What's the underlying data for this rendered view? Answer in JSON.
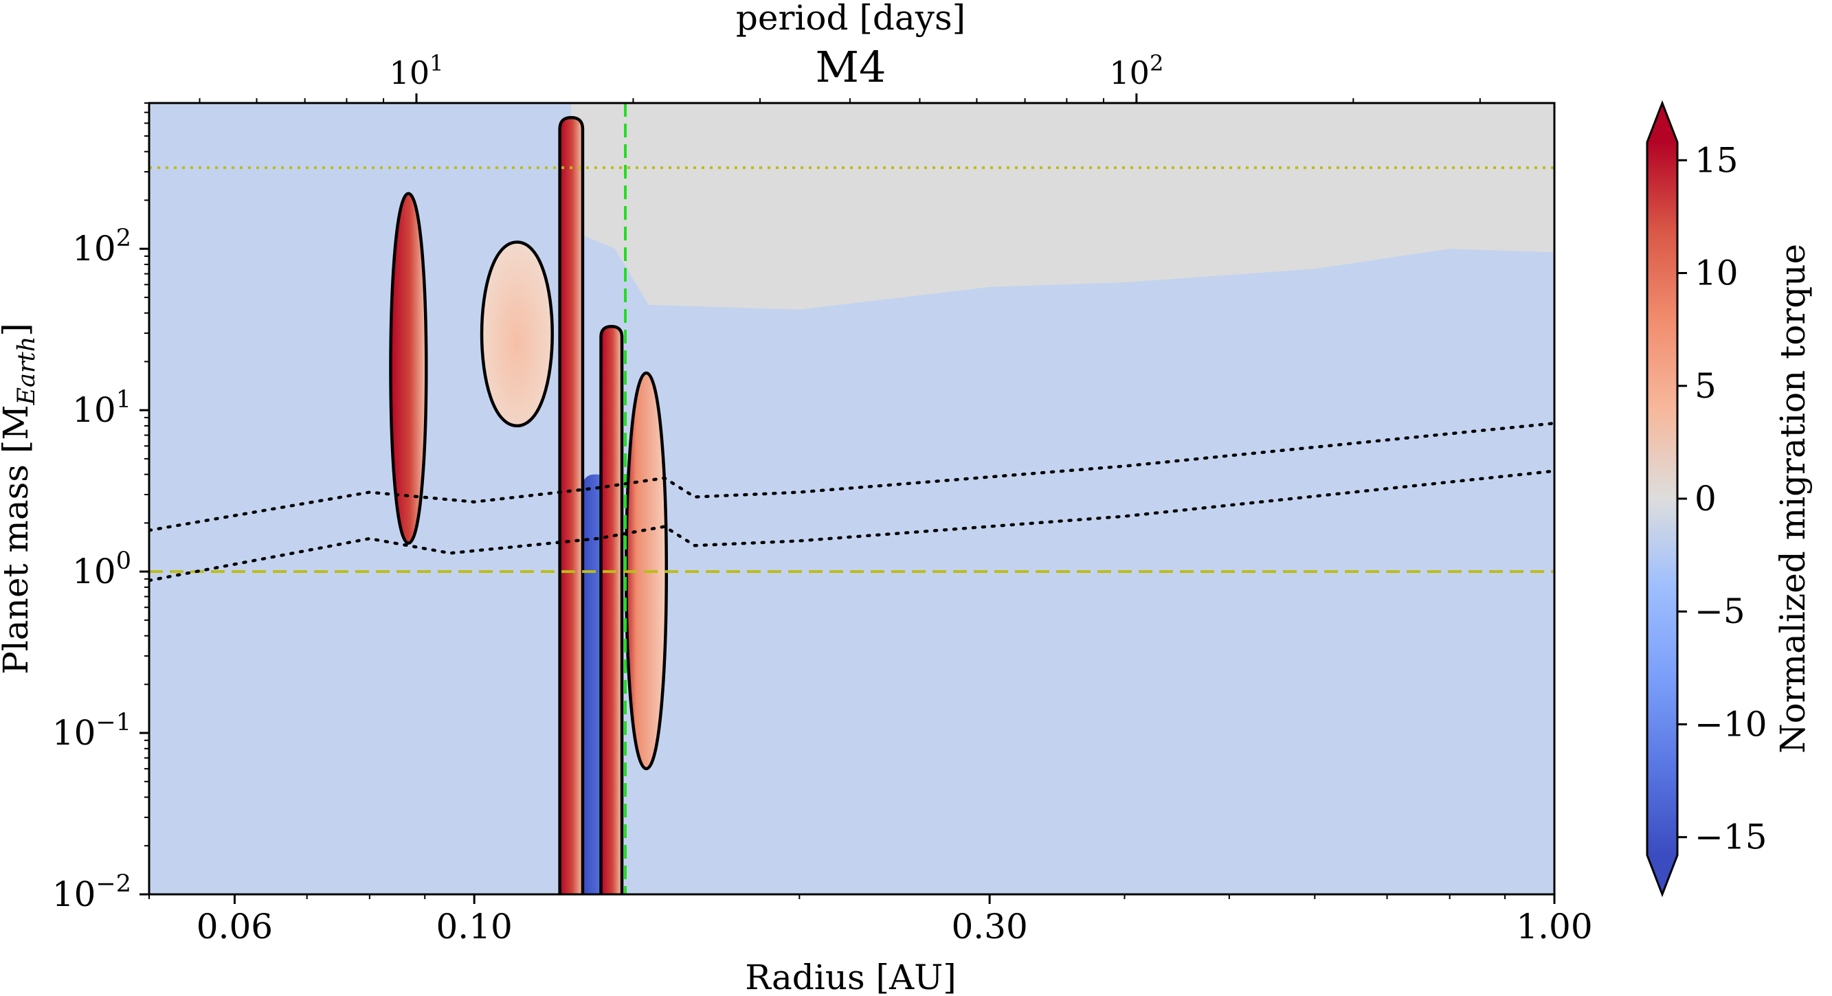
{
  "chart_data": {
    "type": "heatmap",
    "title": "M4",
    "xlabel": "Radius [AU]",
    "ylabel": "Planet mass [M",
    "ylabel_sub": "Earth",
    "ylabel_close": "]",
    "top_xlabel": "period [days]",
    "xscale": "log",
    "yscale": "log",
    "xlim": [
      0.05,
      1.0
    ],
    "ylim": [
      0.01,
      800
    ],
    "x_ticks": [
      {
        "value": 0.06,
        "label": "0.06"
      },
      {
        "value": 0.1,
        "label": "0.10"
      },
      {
        "value": 0.3,
        "label": "0.30"
      },
      {
        "value": 1.0,
        "label": "1.00"
      }
    ],
    "y_ticks": [
      {
        "value": 0.01,
        "base": "10",
        "exp": "−2"
      },
      {
        "value": 0.1,
        "base": "10",
        "exp": "−1"
      },
      {
        "value": 1,
        "base": "10",
        "exp": "0"
      },
      {
        "value": 10,
        "base": "10",
        "exp": "1"
      },
      {
        "value": 100,
        "base": "10",
        "exp": "2"
      }
    ],
    "top_ticks": [
      {
        "period_days": 10,
        "radius_au": 0.0884,
        "base": "10",
        "exp": "1"
      },
      {
        "period_days": 100,
        "radius_au": 0.4103,
        "base": "10",
        "exp": "2"
      }
    ],
    "colorbar": {
      "label": "Normalized migration torque",
      "range": [
        -17,
        17
      ],
      "colormap": "coolwarm",
      "extend": "both",
      "ticks": [
        {
          "value": 15,
          "label": "15"
        },
        {
          "value": 10,
          "label": "10"
        },
        {
          "value": 5,
          "label": "5"
        },
        {
          "value": 0,
          "label": "0"
        },
        {
          "value": -5,
          "label": "−5"
        },
        {
          "value": -10,
          "label": "−10"
        },
        {
          "value": -15,
          "label": "−15"
        }
      ]
    },
    "reference_lines": [
      {
        "orientation": "horizontal",
        "y": 1.0,
        "style": "dashed",
        "color": "#bcbc1a"
      },
      {
        "orientation": "horizontal",
        "y": 318,
        "style": "dotted",
        "color": "#bcbc1a"
      },
      {
        "orientation": "vertical",
        "x": 0.138,
        "style": "dashed",
        "color": "#22dd22"
      }
    ],
    "dotted_curves": [
      {
        "name": "upper",
        "points": [
          [
            0.05,
            1.8
          ],
          [
            0.08,
            3.1
          ],
          [
            0.1,
            2.7
          ],
          [
            0.13,
            3.3
          ],
          [
            0.15,
            3.8
          ],
          [
            0.16,
            2.9
          ],
          [
            0.2,
            3.1
          ],
          [
            0.4,
            4.5
          ],
          [
            1.0,
            8.3
          ]
        ]
      },
      {
        "name": "lower",
        "points": [
          [
            0.05,
            0.88
          ],
          [
            0.08,
            1.6
          ],
          [
            0.095,
            1.3
          ],
          [
            0.13,
            1.6
          ],
          [
            0.15,
            1.9
          ],
          [
            0.16,
            1.45
          ],
          [
            0.2,
            1.55
          ],
          [
            0.4,
            2.2
          ],
          [
            1.0,
            4.2
          ]
        ]
      }
    ],
    "gray_region": {
      "description": "no data (gap opening)",
      "boundary": [
        [
          0.123,
          800
        ],
        [
          0.123,
          130
        ],
        [
          0.135,
          100
        ],
        [
          0.145,
          45
        ],
        [
          0.2,
          42
        ],
        [
          0.3,
          58
        ],
        [
          0.4,
          62
        ],
        [
          0.6,
          75
        ],
        [
          0.8,
          100
        ],
        [
          1.0,
          95
        ],
        [
          1.0,
          800
        ]
      ]
    },
    "features": [
      {
        "name": "narrow positive band",
        "x_range": [
          0.083,
          0.091
        ],
        "mass_range": [
          1.5,
          220
        ],
        "peak": 17
      },
      {
        "name": "positive island",
        "x_range": [
          0.1,
          0.12
        ],
        "mass_range": [
          8,
          110
        ],
        "peak": 4
      },
      {
        "name": "strong positive band",
        "x_range": [
          0.12,
          0.126
        ],
        "mass_range": [
          0.01,
          650
        ],
        "peak": 17
      },
      {
        "name": "negative band",
        "x_range": [
          0.126,
          0.133
        ],
        "mass_range": [
          0.01,
          4
        ],
        "peak": -15
      },
      {
        "name": "positive band",
        "x_range": [
          0.131,
          0.137
        ],
        "mass_range": [
          0.01,
          33
        ],
        "peak": 17
      },
      {
        "name": "positive band",
        "x_range": [
          0.137,
          0.152
        ],
        "mass_range": [
          0.06,
          17
        ],
        "peak": 10
      }
    ]
  }
}
